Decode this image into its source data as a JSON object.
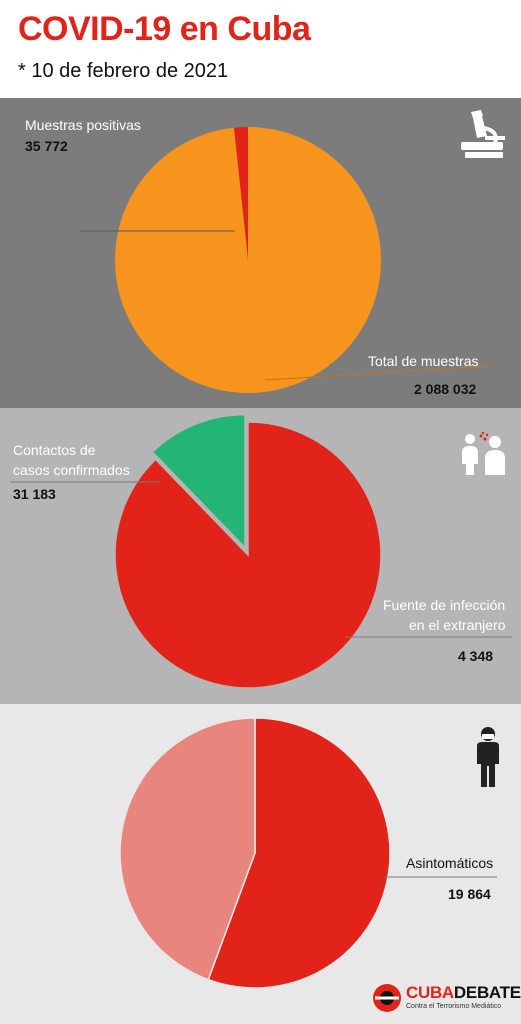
{
  "header": {
    "title": "COVID-19 en Cuba",
    "date": "* 10 de febrero de 2021"
  },
  "colors": {
    "red": "#e2231a",
    "orange": "#f7941d",
    "green": "#22b573",
    "pink": "#e8867d",
    "panel1": "#7c7c7c",
    "panel2": "#b5b5b5",
    "panel3": "#e8e8e8"
  },
  "chart_data": [
    {
      "type": "pie",
      "slices": [
        {
          "label": "Muestras positivas",
          "value": 35772,
          "display": "35 772",
          "color": "#e2231a"
        },
        {
          "label": "Total de muestras",
          "value": 2088032,
          "display": "2 088 032",
          "color": "#f7941d"
        }
      ]
    },
    {
      "type": "pie",
      "slices": [
        {
          "label": "Contactos de casos confirmados",
          "label_lines": [
            "Contactos de",
            "casos confirmados"
          ],
          "value": 31183,
          "display": "31 183",
          "color": "#e2231a"
        },
        {
          "label": "Fuente de infección en el extranjero",
          "label_lines": [
            "Fuente de infección",
            "en el extranjero"
          ],
          "value": 4348,
          "display": "4 348",
          "color": "#22b573"
        }
      ]
    },
    {
      "type": "pie",
      "slices": [
        {
          "label": "Asintomáticos",
          "value": 19864,
          "display": "19 864",
          "color": "#e2231a"
        },
        {
          "label": "",
          "value": 15843,
          "color": "#e8867d"
        }
      ]
    }
  ],
  "icons": [
    "microscope-icon",
    "contact-icon",
    "person-mask-icon"
  ],
  "logo": {
    "brand_red": "CUBA",
    "brand_dark": "DEBATE",
    "tagline": "Contra el Terrorismo Mediático"
  }
}
